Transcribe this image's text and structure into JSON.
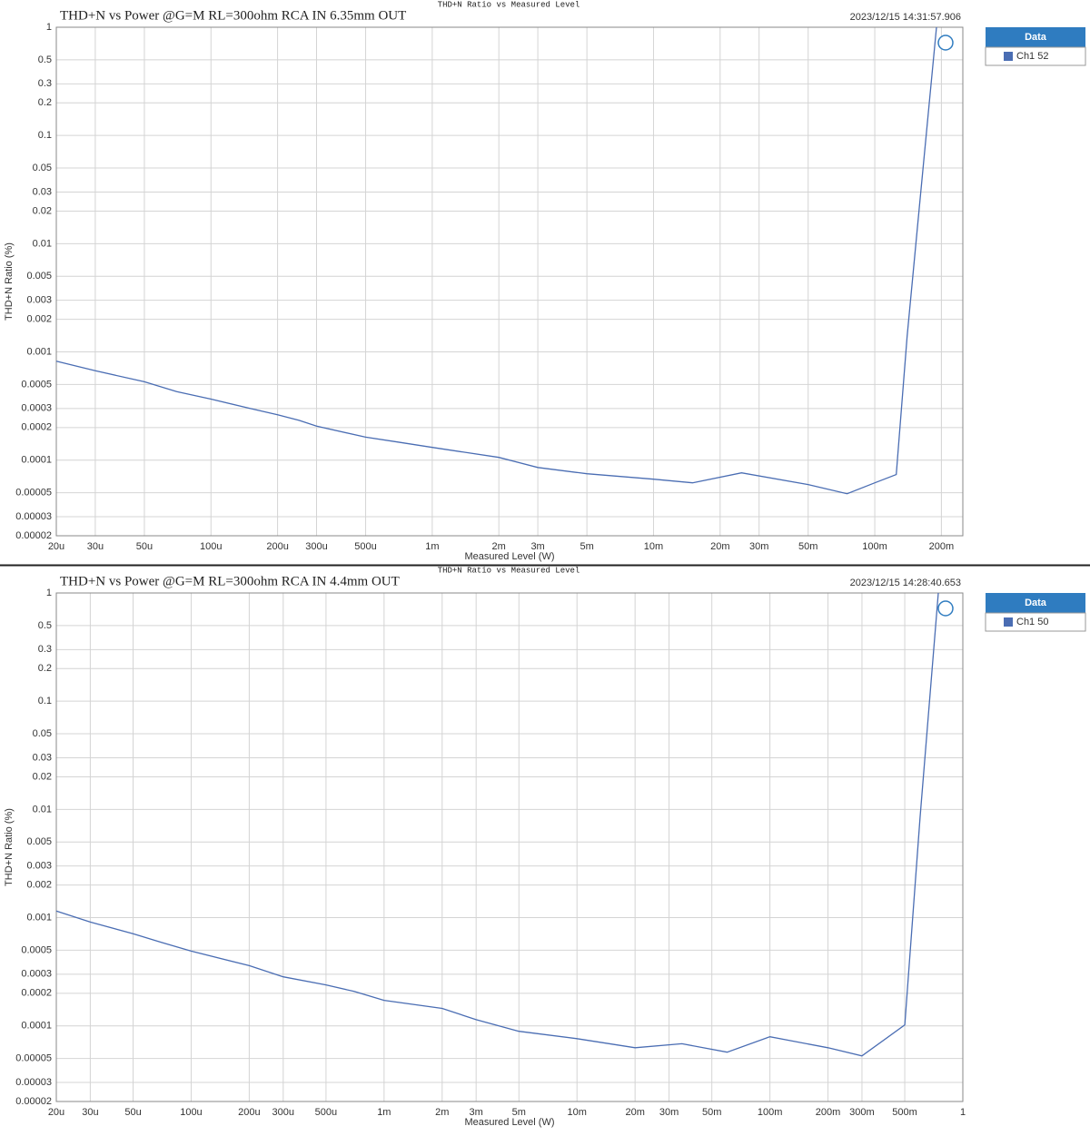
{
  "chart_data": [
    {
      "type": "line",
      "header": "THD+N Ratio vs Measured Level",
      "title": "THD+N vs Power @G=M RL=300ohm RCA IN 6.35mm OUT",
      "timestamp": "2023/12/15 14:31:57.906",
      "x_label": "Measured Level (W)",
      "y_label": "THD+N Ratio (%)",
      "log_x": true,
      "log_y": true,
      "grid": true,
      "legend_title": "Data",
      "legend_position": "right",
      "xlim": [
        2e-05,
        0.25
      ],
      "ylim": [
        2e-05,
        1
      ],
      "xticks": [
        {
          "value": 2e-05,
          "label": "20u"
        },
        {
          "value": 3e-05,
          "label": "30u"
        },
        {
          "value": 5e-05,
          "label": "50u"
        },
        {
          "value": 0.0001,
          "label": "100u"
        },
        {
          "value": 0.0002,
          "label": "200u"
        },
        {
          "value": 0.0003,
          "label": "300u"
        },
        {
          "value": 0.0005,
          "label": "500u"
        },
        {
          "value": 0.001,
          "label": "1m"
        },
        {
          "value": 0.002,
          "label": "2m"
        },
        {
          "value": 0.003,
          "label": "3m"
        },
        {
          "value": 0.005,
          "label": "5m"
        },
        {
          "value": 0.01,
          "label": "10m"
        },
        {
          "value": 0.02,
          "label": "20m"
        },
        {
          "value": 0.03,
          "label": "30m"
        },
        {
          "value": 0.05,
          "label": "50m"
        },
        {
          "value": 0.1,
          "label": "100m"
        },
        {
          "value": 0.2,
          "label": "200m"
        }
      ],
      "yticks": [
        1,
        0.5,
        0.3,
        0.2,
        0.1,
        0.05,
        0.03,
        0.02,
        0.01,
        0.005,
        0.003,
        0.002,
        0.001,
        0.0005,
        0.0003,
        0.0002,
        0.0001,
        5e-05,
        3e-05,
        2e-05
      ],
      "x": [
        2e-05,
        3e-05,
        5e-05,
        7e-05,
        0.0001,
        0.00015,
        0.0002,
        0.00025,
        0.0003,
        0.0005,
        0.0007,
        0.001,
        0.002,
        0.003,
        0.005,
        0.01,
        0.015,
        0.025,
        0.05,
        0.075,
        0.1,
        0.125,
        0.14,
        0.16,
        0.19
      ],
      "series": [
        {
          "name": "Ch1 52",
          "color": "#4a6db3",
          "values": [
            0.00082,
            0.00067,
            0.00053,
            0.00043,
            0.000366,
            0.0003,
            0.000263,
            0.000233,
            0.000206,
            0.000163,
            0.000147,
            0.000131,
            0.000106,
            8.55e-05,
            7.48e-05,
            6.67e-05,
            6.17e-05,
            7.63e-05,
            5.95e-05,
            4.89e-05,
            6.17e-05,
            7.35e-05,
            0.0014,
            0.025,
            1
          ]
        }
      ]
    },
    {
      "type": "line",
      "header": "THD+N Ratio vs Measured Level",
      "title": "THD+N vs Power @G=M RL=300ohm RCA IN 4.4mm OUT",
      "timestamp": "2023/12/15 14:28:40.653",
      "x_label": "Measured Level (W)",
      "y_label": "THD+N Ratio (%)",
      "log_x": true,
      "log_y": true,
      "grid": true,
      "legend_title": "Data",
      "legend_position": "right",
      "xlim": [
        2e-05,
        1
      ],
      "ylim": [
        2e-05,
        1
      ],
      "xticks": [
        {
          "value": 2e-05,
          "label": "20u"
        },
        {
          "value": 3e-05,
          "label": "30u"
        },
        {
          "value": 5e-05,
          "label": "50u"
        },
        {
          "value": 0.0001,
          "label": "100u"
        },
        {
          "value": 0.0002,
          "label": "200u"
        },
        {
          "value": 0.0003,
          "label": "300u"
        },
        {
          "value": 0.0005,
          "label": "500u"
        },
        {
          "value": 0.001,
          "label": "1m"
        },
        {
          "value": 0.002,
          "label": "2m"
        },
        {
          "value": 0.003,
          "label": "3m"
        },
        {
          "value": 0.005,
          "label": "5m"
        },
        {
          "value": 0.01,
          "label": "10m"
        },
        {
          "value": 0.02,
          "label": "20m"
        },
        {
          "value": 0.03,
          "label": "30m"
        },
        {
          "value": 0.05,
          "label": "50m"
        },
        {
          "value": 0.1,
          "label": "100m"
        },
        {
          "value": 0.2,
          "label": "200m"
        },
        {
          "value": 0.3,
          "label": "300m"
        },
        {
          "value": 0.5,
          "label": "500m"
        },
        1
      ],
      "yticks": [
        1,
        0.5,
        0.3,
        0.2,
        0.1,
        0.05,
        0.03,
        0.02,
        0.01,
        0.005,
        0.003,
        0.002,
        0.001,
        0.0005,
        0.0003,
        0.0002,
        0.0001,
        5e-05,
        3e-05,
        2e-05
      ],
      "x": [
        2e-05,
        3e-05,
        5e-05,
        7e-05,
        0.0001,
        0.0002,
        0.0003,
        0.0005,
        0.0007,
        0.001,
        0.002,
        0.003,
        0.005,
        0.01,
        0.02,
        0.035,
        0.06,
        0.1,
        0.2,
        0.3,
        0.5,
        0.6,
        0.746
      ],
      "series": [
        {
          "name": "Ch1 50",
          "color": "#4a6db3",
          "values": [
            0.00115,
            0.00091,
            0.00071,
            0.00059,
            0.00049,
            0.00036,
            0.000284,
            0.000239,
            0.000208,
            0.000172,
            0.000145,
            0.000114,
            8.91e-05,
            7.62e-05,
            6.28e-05,
            6.83e-05,
            5.71e-05,
            7.93e-05,
            6.28e-05,
            5.28e-05,
            0.000102,
            0.0084,
            1
          ]
        }
      ]
    }
  ]
}
